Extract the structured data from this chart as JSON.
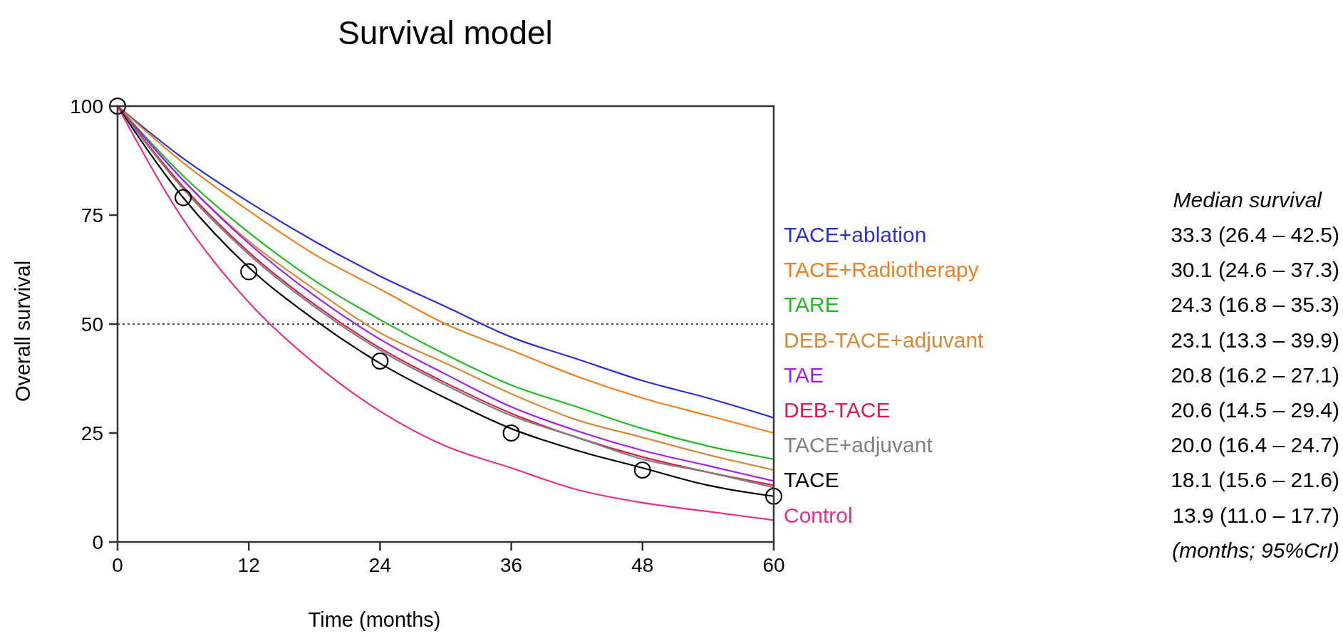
{
  "chart_data": {
    "type": "line",
    "title": "Survival model",
    "xlabel": "Time (months)",
    "ylabel": "Overall survival",
    "x": [
      0,
      6,
      12,
      18,
      24,
      30,
      36,
      42,
      48,
      54,
      60
    ],
    "xlim": [
      0,
      60
    ],
    "xticks": [
      0,
      12,
      24,
      36,
      48,
      60
    ],
    "ylim": [
      0,
      100
    ],
    "yticks": [
      0,
      25,
      50,
      75,
      100
    ],
    "grid": false,
    "legend": "right",
    "line_style": "solid",
    "series": [
      {
        "name": "TACE+ablation",
        "color": "#2d2fd0",
        "values": [
          100,
          88,
          78,
          69,
          61,
          54,
          47,
          42,
          37,
          33,
          28.5
        ]
      },
      {
        "name": "TACE+Radiotherapy",
        "color": "#f07f1f",
        "values": [
          100,
          87,
          76,
          66,
          58,
          50,
          44,
          38,
          33,
          29,
          25
        ]
      },
      {
        "name": "TARE",
        "color": "#22bb22",
        "values": [
          100,
          84,
          71,
          60,
          51,
          43,
          36,
          31,
          26,
          22,
          19
        ]
      },
      {
        "name": "DEB-TACE+adjuvant",
        "color": "#d58a3a",
        "values": [
          100,
          83,
          69,
          58,
          48,
          41,
          34,
          28,
          24,
          20,
          16.5
        ]
      },
      {
        "name": "TAE",
        "color": "#a020f0",
        "values": [
          100,
          83,
          68.5,
          56.5,
          46.5,
          38.5,
          31,
          25.5,
          21,
          17.5,
          14
        ]
      },
      {
        "name": "DEB-TACE",
        "color": "#e01a4a",
        "values": [
          100,
          81.5,
          66.5,
          54.5,
          44.5,
          36.5,
          29.5,
          24,
          19.5,
          16,
          13
        ]
      },
      {
        "name": "TACE+adjuvant",
        "color": "#808080",
        "values": [
          100,
          81,
          66,
          54,
          44,
          36,
          29,
          24,
          19,
          16,
          12.5
        ]
      },
      {
        "name": "TACE",
        "color": "#000000",
        "values": [
          100,
          79,
          63,
          51,
          41,
          33,
          26,
          21,
          17,
          13,
          10.5
        ]
      },
      {
        "name": "Control",
        "color": "#e8308a",
        "values": [
          100,
          74,
          55,
          41,
          30,
          22,
          17,
          12,
          9,
          7,
          5
        ]
      },
      {
        "type": "scatter",
        "color": "#000000",
        "marker": "circle",
        "x": [
          0,
          6,
          12,
          24,
          36,
          48,
          60
        ],
        "values": [
          100,
          79,
          62,
          41.5,
          25,
          16.5,
          10.5
        ]
      }
    ],
    "ref_lines": [
      {
        "axis": "y",
        "value": 50,
        "color": "#555555",
        "line_style": "dotted"
      }
    ],
    "annotations": [
      "Median survival",
      "33.3 (26.4 – 42.5)",
      "30.1 (24.6 – 37.3)",
      "24.3 (16.8 – 35.3)",
      "23.1 (13.3 – 39.9)",
      "20.8 (16.2 – 27.1)",
      "20.6 (14.5 – 29.4)",
      "20.0 (16.4 – 24.7)",
      "18.1 (15.6 – 21.6)",
      "13.9 (11.0 – 17.7)",
      "(months; 95%CrI)"
    ]
  }
}
